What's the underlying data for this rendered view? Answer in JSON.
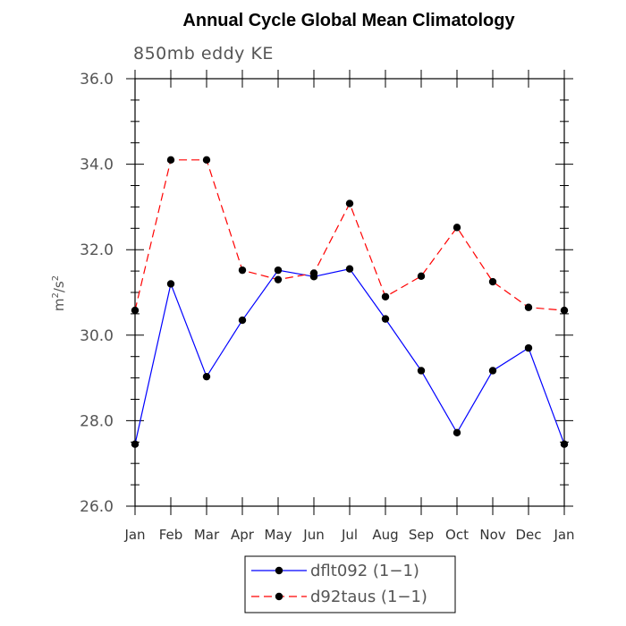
{
  "chart_data": {
    "type": "line",
    "title": "Annual Cycle Global Mean Climatology",
    "subtitle": "850mb eddy KE",
    "ylabel_base": "m",
    "ylabel_sup1": "2",
    "ylabel_mid": "/s",
    "ylabel_sup2": "2",
    "xlabel": "",
    "categories": [
      "Jan",
      "Feb",
      "Mar",
      "Apr",
      "May",
      "Jun",
      "Jul",
      "Aug",
      "Sep",
      "Oct",
      "Nov",
      "Dec",
      "Jan"
    ],
    "ylim": [
      26.0,
      36.0
    ],
    "yticks_major": [
      "26.0",
      "28.0",
      "30.0",
      "32.0",
      "34.0",
      "36.0"
    ],
    "series": [
      {
        "name": "dflt092 (1-1)",
        "legend_label": "dflt092 (1−1)",
        "color": "#0000ff",
        "dash": "solid",
        "values": [
          27.45,
          31.2,
          29.03,
          30.35,
          31.52,
          31.37,
          31.55,
          30.38,
          29.17,
          27.72,
          29.17,
          29.7,
          27.45
        ]
      },
      {
        "name": "d92taus (1-1)",
        "legend_label": "d92taus (1−1)",
        "color": "#ff0000",
        "dash": "dashed",
        "values": [
          30.58,
          34.1,
          34.1,
          31.52,
          31.3,
          31.45,
          33.08,
          30.9,
          31.38,
          32.52,
          31.25,
          30.65,
          30.58
        ]
      }
    ]
  }
}
